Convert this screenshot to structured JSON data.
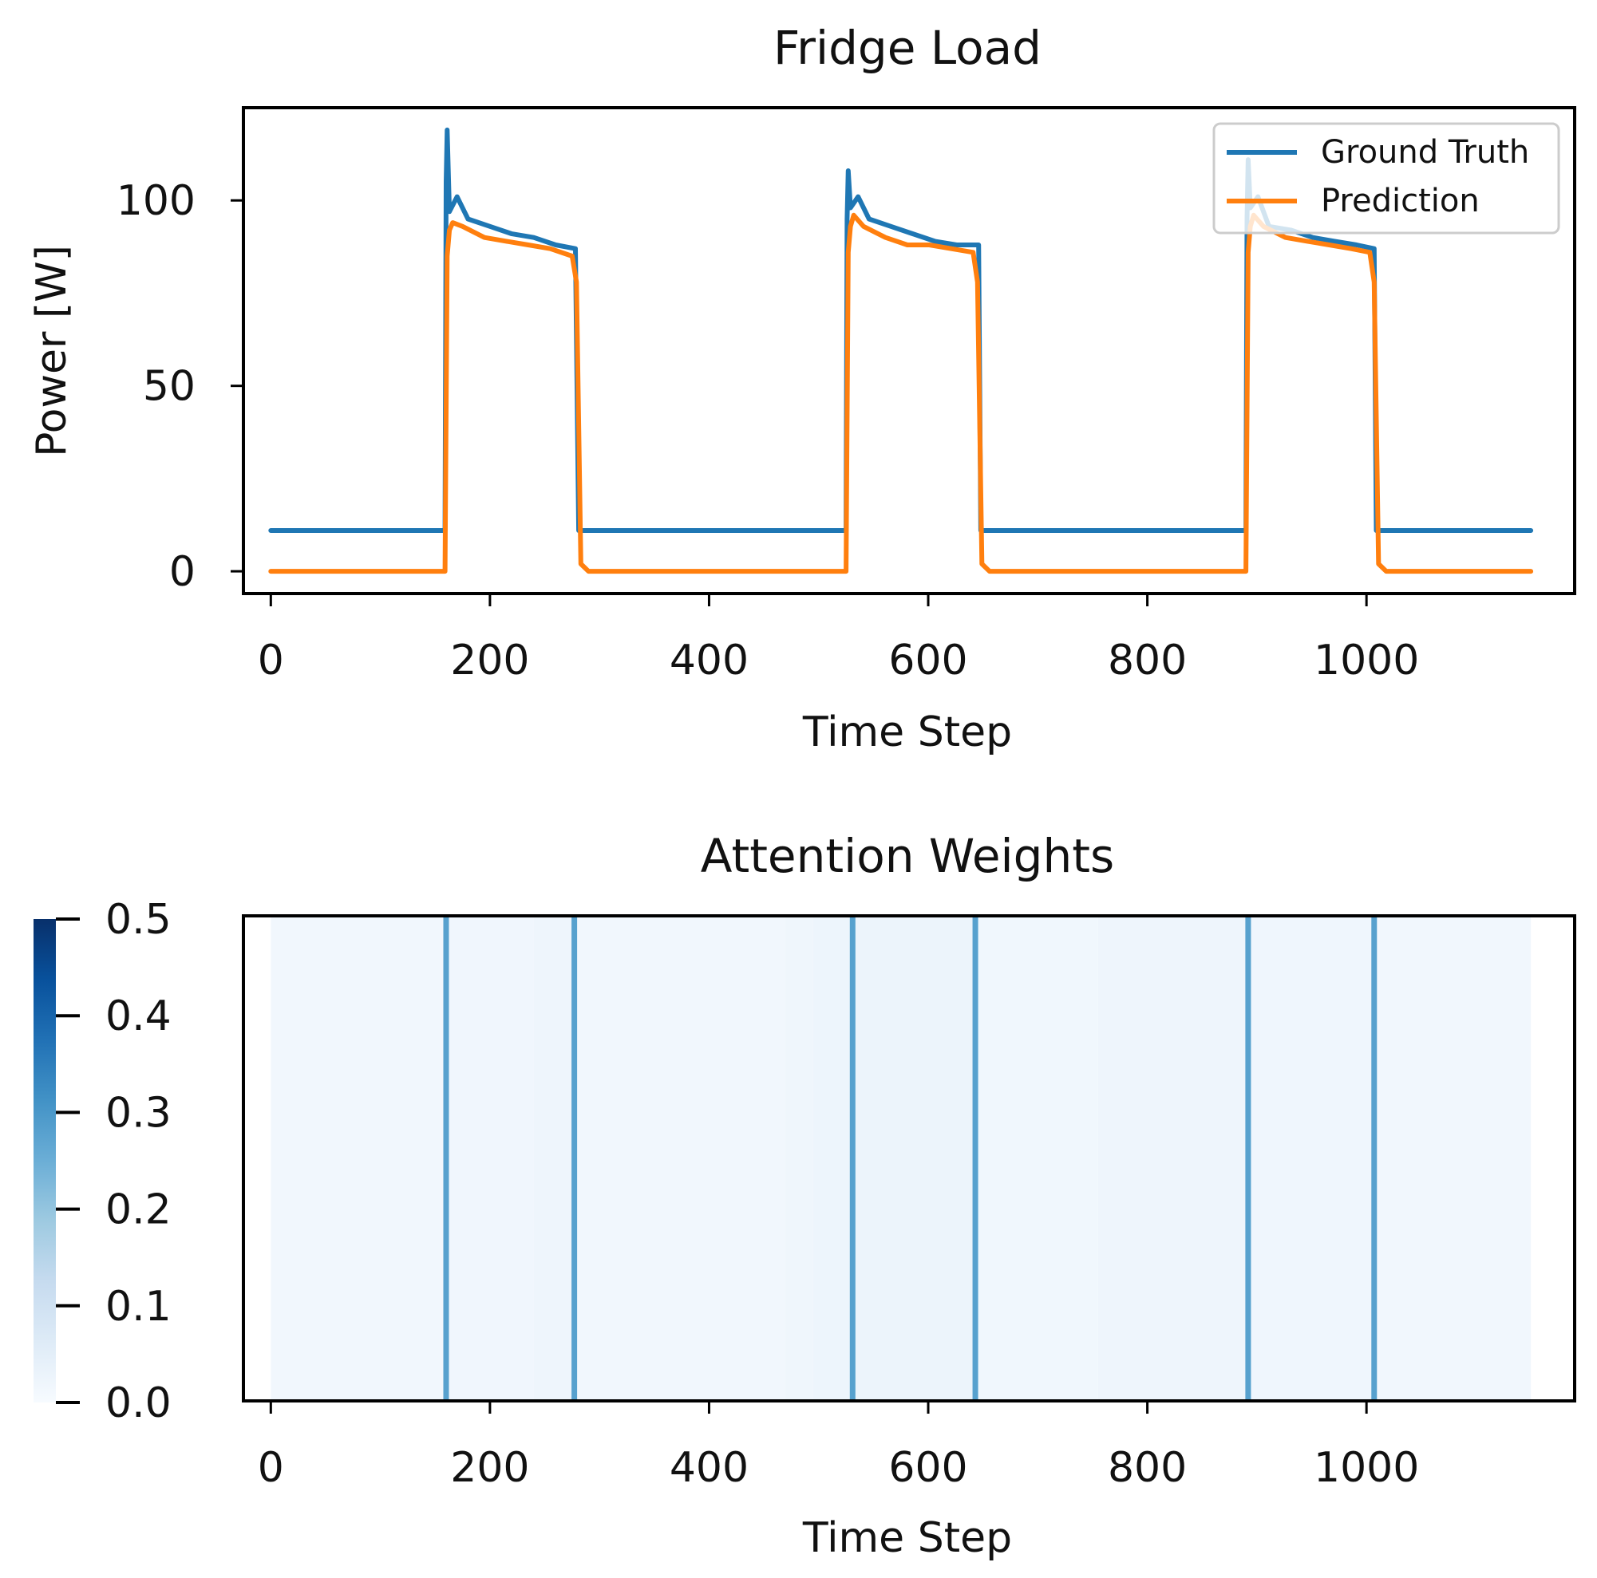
{
  "chart_data": [
    {
      "type": "line",
      "title": "Fridge Load",
      "xlabel": "Time Step",
      "ylabel": "Power [W]",
      "xlim": [
        -25,
        1190
      ],
      "ylim": [
        -6,
        125
      ],
      "xticks": [
        0,
        200,
        400,
        600,
        800,
        1000
      ],
      "xtick_labels": [
        "0",
        "200",
        "400",
        "600",
        "800",
        "1000"
      ],
      "yticks": [
        0,
        50,
        100
      ],
      "ytick_labels": [
        "0",
        "50",
        "100"
      ],
      "grid": false,
      "legend_position": "top-right",
      "series": [
        {
          "name": "Ground Truth",
          "color": "#1f77b4",
          "x": [
            0,
            159,
            160,
            161,
            163,
            170,
            180,
            200,
            220,
            240,
            260,
            278,
            281,
            283,
            400,
            525,
            526,
            527,
            529,
            536,
            546,
            566,
            586,
            606,
            626,
            646,
            648,
            650,
            770,
            890,
            891,
            892,
            894,
            901,
            911,
            931,
            951,
            971,
            991,
            1007,
            1009,
            1011,
            1150
          ],
          "y": [
            11,
            11,
            105,
            119,
            97,
            101,
            95,
            93,
            91,
            90,
            88,
            87,
            11,
            11,
            11,
            11,
            95,
            108,
            98,
            101,
            95,
            93,
            91,
            89,
            88,
            88,
            11,
            11,
            11,
            11,
            95,
            111,
            98,
            101,
            93,
            92,
            90,
            89,
            88,
            87,
            11,
            11,
            11
          ]
        },
        {
          "name": "Prediction",
          "color": "#ff7f0e",
          "x": [
            0,
            159,
            161,
            163,
            166,
            175,
            195,
            215,
            235,
            255,
            275,
            279,
            283,
            290,
            400,
            525,
            527,
            529,
            532,
            541,
            561,
            581,
            601,
            621,
            641,
            645,
            649,
            656,
            770,
            890,
            892,
            894,
            897,
            906,
            926,
            946,
            966,
            986,
            1003,
            1007,
            1011,
            1018,
            1150
          ],
          "y": [
            0,
            0,
            85,
            92,
            94,
            93,
            90,
            89,
            88,
            87,
            85,
            78,
            2,
            0,
            0,
            0,
            86,
            93,
            96,
            93,
            90,
            88,
            88,
            87,
            86,
            78,
            2,
            0,
            0,
            0,
            86,
            93,
            96,
            93,
            90,
            89,
            88,
            87,
            86,
            78,
            2,
            0,
            0
          ]
        }
      ]
    },
    {
      "type": "heatmap",
      "title": "Attention Weights",
      "xlabel": "Time Step",
      "xlim": [
        -25,
        1190
      ],
      "xticks": [
        0,
        200,
        400,
        600,
        800,
        1000
      ],
      "xtick_labels": [
        "0",
        "200",
        "400",
        "600",
        "800",
        "1000"
      ],
      "colorbar": {
        "position": "left",
        "min": 0.0,
        "max": 0.5,
        "ticks": [
          0.0,
          0.1,
          0.2,
          0.3,
          0.4,
          0.5
        ],
        "tick_labels": [
          "0.0",
          "0.1",
          "0.2",
          "0.3",
          "0.4",
          "0.5"
        ],
        "colormap": "Blues"
      },
      "background_segments": [
        {
          "start": 0,
          "end": 160,
          "weight": 0.015
        },
        {
          "start": 160,
          "end": 240,
          "weight": 0.018
        },
        {
          "start": 240,
          "end": 280,
          "weight": 0.022
        },
        {
          "start": 280,
          "end": 470,
          "weight": 0.016
        },
        {
          "start": 470,
          "end": 495,
          "weight": 0.02
        },
        {
          "start": 495,
          "end": 530,
          "weight": 0.024
        },
        {
          "start": 530,
          "end": 643,
          "weight": 0.028
        },
        {
          "start": 643,
          "end": 755,
          "weight": 0.017
        },
        {
          "start": 755,
          "end": 893,
          "weight": 0.023
        },
        {
          "start": 893,
          "end": 1010,
          "weight": 0.019
        },
        {
          "start": 1010,
          "end": 1150,
          "weight": 0.014
        }
      ],
      "peaks": [
        {
          "x": 160,
          "weight": 0.28
        },
        {
          "x": 277,
          "weight": 0.28
        },
        {
          "x": 531,
          "weight": 0.28
        },
        {
          "x": 643,
          "weight": 0.28
        },
        {
          "x": 892,
          "weight": 0.28
        },
        {
          "x": 1007,
          "weight": 0.28
        }
      ]
    }
  ]
}
